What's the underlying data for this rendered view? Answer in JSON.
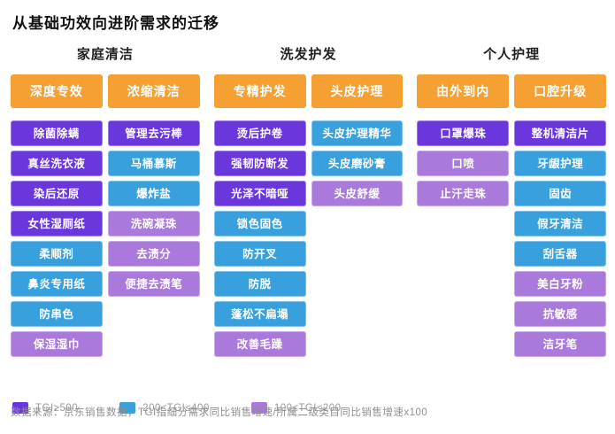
{
  "title": "从基础功效向进阶需求的迁移",
  "footer": "数据来源：京东销售数据，TGI指细分需求同比销售增速/所属二级类目同比销售增速x100",
  "colors": {
    "header_orange": "#F5A033",
    "tgi_high_purple": "#6937DC",
    "tgi_mid_blue": "#38A0DD",
    "tgi_low_lilac": "#A979DB"
  },
  "chart_data": {
    "type": "table",
    "title": "从基础功效向进阶需求的迁移",
    "legend": [
      {
        "label": "TGI≥500",
        "tier": "high",
        "color": "#6937DC"
      },
      {
        "label": "200≤TGI≤400",
        "tier": "mid",
        "color": "#38A0DD"
      },
      {
        "label": "100≤TGI≤200",
        "tier": "low",
        "color": "#A979DB"
      }
    ],
    "groups": [
      {
        "name": "家庭清洁",
        "columns": [
          {
            "header": "深度专效",
            "items": [
              {
                "label": "除菌除螨",
                "tier": "high"
              },
              {
                "label": "真丝洗衣液",
                "tier": "high"
              },
              {
                "label": "染后还原",
                "tier": "high"
              },
              {
                "label": "女性湿厕纸",
                "tier": "high"
              },
              {
                "label": "柔顺剂",
                "tier": "mid"
              },
              {
                "label": "鼻炎专用纸",
                "tier": "mid"
              },
              {
                "label": "防串色",
                "tier": "mid"
              },
              {
                "label": "保湿湿巾",
                "tier": "low"
              }
            ]
          },
          {
            "header": "浓缩清洁",
            "items": [
              {
                "label": "管理去污棒",
                "tier": "high"
              },
              {
                "label": "马桶慕斯",
                "tier": "mid"
              },
              {
                "label": "爆炸盐",
                "tier": "mid"
              },
              {
                "label": "洗碗凝珠",
                "tier": "low"
              },
              {
                "label": "去渍分",
                "tier": "low"
              },
              {
                "label": "便捷去渍笔",
                "tier": "low"
              }
            ]
          }
        ]
      },
      {
        "name": "洗发护发",
        "columns": [
          {
            "header": "专精护发",
            "items": [
              {
                "label": "烫后护卷",
                "tier": "high"
              },
              {
                "label": "强韧防断发",
                "tier": "high"
              },
              {
                "label": "光泽不暗哑",
                "tier": "high"
              },
              {
                "label": "锁色固色",
                "tier": "mid"
              },
              {
                "label": "防开叉",
                "tier": "mid"
              },
              {
                "label": "防脱",
                "tier": "mid"
              },
              {
                "label": "蓬松不扁塌",
                "tier": "mid"
              },
              {
                "label": "改善毛躁",
                "tier": "low"
              }
            ]
          },
          {
            "header": "头皮护理",
            "items": [
              {
                "label": "头皮护理精华",
                "tier": "mid"
              },
              {
                "label": "头皮磨砂膏",
                "tier": "mid"
              },
              {
                "label": "头皮舒缓",
                "tier": "low"
              }
            ]
          }
        ]
      },
      {
        "name": "个人护理",
        "columns": [
          {
            "header": "由外到内",
            "items": [
              {
                "label": "口罩爆珠",
                "tier": "high"
              },
              {
                "label": "口喷",
                "tier": "low"
              },
              {
                "label": "止汗走珠",
                "tier": "low"
              }
            ]
          },
          {
            "header": "口腔升级",
            "items": [
              {
                "label": "整机清洁片",
                "tier": "high"
              },
              {
                "label": "牙龈护理",
                "tier": "mid"
              },
              {
                "label": "固齿",
                "tier": "mid"
              },
              {
                "label": "假牙清洁",
                "tier": "mid"
              },
              {
                "label": "刮舌器",
                "tier": "mid"
              },
              {
                "label": "美白牙粉",
                "tier": "low"
              },
              {
                "label": "抗敏感",
                "tier": "low"
              },
              {
                "label": "洁牙笔",
                "tier": "low"
              }
            ]
          }
        ]
      }
    ]
  }
}
